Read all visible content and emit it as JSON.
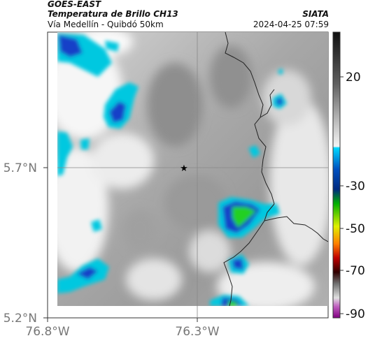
{
  "header": {
    "satellite": "GOES-EAST",
    "product": "Temperatura de Brillo CH13",
    "route": "Vía Medellín - Quibdó 50km",
    "org": "SIATA",
    "datetime": "2024-04-25 07:59"
  },
  "map": {
    "lat_labels": [
      "5.7°N",
      "5.2°N"
    ],
    "lon_labels": [
      "76.8°W",
      "76.3°W"
    ],
    "marker": "star-icon"
  },
  "colorbar": {
    "tick_labels": [
      "20",
      "-30",
      "-50",
      "-70",
      "-90"
    ]
  },
  "colors": {
    "cloud_cyan": "#00c8e0",
    "cloud_blue": "#1440c8",
    "cloud_green": "#20d020",
    "border_line": "#222222",
    "grid_line": "#888888"
  }
}
